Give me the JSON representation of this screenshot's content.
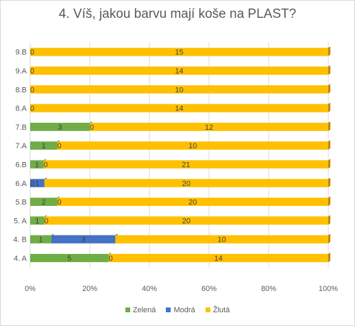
{
  "chart_data": {
    "type": "bar",
    "orientation": "horizontal",
    "stacked": "percent",
    "title": "4. Víš, jakou barvu mají koše na PLAST?",
    "categories": [
      "9.B",
      "9.A",
      "8.B",
      "8.A",
      "7.B",
      "7.A",
      "6.B",
      "6.A",
      "5.B",
      "5. A",
      "4. B",
      "4. A"
    ],
    "series": [
      {
        "name": "Zelená",
        "color": "#70ad47",
        "values": [
          0,
          0,
          0,
          0,
          3,
          1,
          1,
          0,
          2,
          1,
          1,
          5
        ]
      },
      {
        "name": "Modrá",
        "color": "#4472c4",
        "values": [
          null,
          null,
          null,
          null,
          null,
          null,
          null,
          1,
          null,
          null,
          3,
          null
        ]
      },
      {
        "name": "Žlutá",
        "color": "#ffc000",
        "values": [
          15,
          14,
          10,
          14,
          12,
          10,
          21,
          20,
          20,
          20,
          10,
          14
        ]
      }
    ],
    "zero_labels": [
      [
        {
          "series": 0,
          "value": "0"
        }
      ],
      [
        {
          "series": 0,
          "value": "0"
        }
      ],
      [
        {
          "series": 0,
          "value": "0"
        }
      ],
      [
        {
          "series": 0,
          "value": "0"
        }
      ],
      [
        {
          "series": 2,
          "value": "0",
          "after_series": 0
        }
      ],
      [
        {
          "series": 2,
          "value": "0",
          "after_series": 0
        }
      ],
      [
        {
          "series": 2,
          "value": "0",
          "after_series": 0
        }
      ],
      [
        {
          "series": 0,
          "value": "0"
        }
      ],
      [
        {
          "series": 2,
          "value": "0",
          "after_series": 0
        }
      ],
      [
        {
          "series": 2,
          "value": "0",
          "after_series": 0
        }
      ],
      [],
      [
        {
          "series": 2,
          "value": "0",
          "after_series": 0
        }
      ]
    ],
    "x_ticks": [
      "0%",
      "20%",
      "40%",
      "60%",
      "80%",
      "100%"
    ],
    "xlim": [
      0,
      100
    ],
    "grid": true,
    "legend": "bottom"
  }
}
